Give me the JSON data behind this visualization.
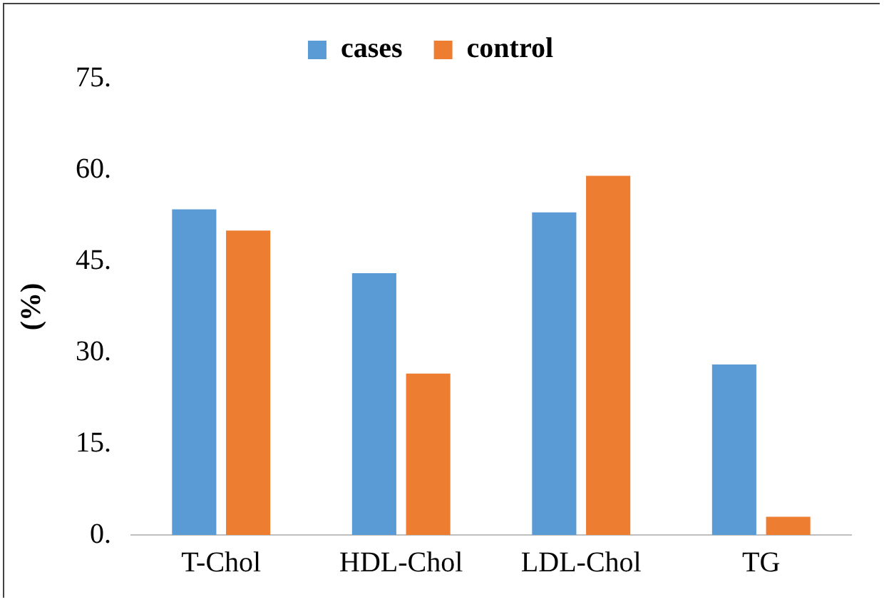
{
  "chart_data": {
    "type": "bar",
    "ylabel": "(%)",
    "categories": [
      "T-Chol",
      "HDL-Chol",
      "LDL-Chol",
      "TG"
    ],
    "series": [
      {
        "name": "cases",
        "color": "#5b9bd5",
        "values": [
          53.5,
          43,
          53,
          28
        ]
      },
      {
        "name": "control",
        "color": "#ed7d31",
        "values": [
          50,
          26.5,
          59,
          3
        ]
      }
    ],
    "ylim": [
      0,
      75
    ],
    "yticks": [
      {
        "value": 0,
        "label": "0."
      },
      {
        "value": 15,
        "label": "15."
      },
      {
        "value": 30,
        "label": "30."
      },
      {
        "value": 45,
        "label": "45."
      },
      {
        "value": 60,
        "label": "60."
      },
      {
        "value": 75,
        "label": "75."
      }
    ],
    "grid": false,
    "legend": "top"
  }
}
